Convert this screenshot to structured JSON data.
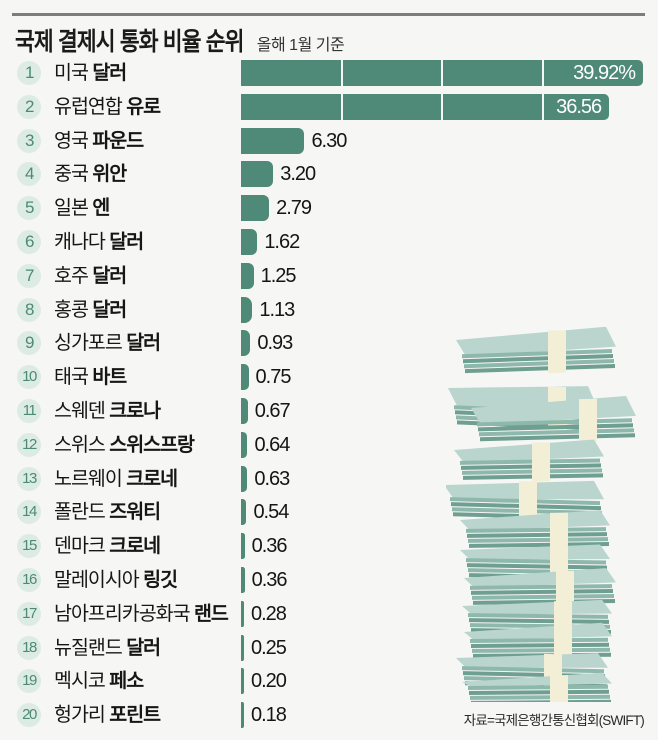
{
  "header": {
    "title": "국제 결제시 통화 비율 순위",
    "subtitle": "올해 1월 기준"
  },
  "source": "자료=국제은행간통신협회(SWIFT)",
  "colors": {
    "bar": "#4f8a79",
    "rank_circle": "#dcebe4",
    "rank_text": "#4d8a77",
    "background": "#f6f6f5",
    "band": "#f3efd6"
  },
  "illustration": "stack-of-money-icon",
  "rows": [
    {
      "rank": "1",
      "country": "미국",
      "currency": "달러",
      "value": "39.92%"
    },
    {
      "rank": "2",
      "country": "유럽연합",
      "currency": "유로",
      "value": "36.56"
    },
    {
      "rank": "3",
      "country": "영국",
      "currency": "파운드",
      "value": "6.30"
    },
    {
      "rank": "4",
      "country": "중국",
      "currency": "위안",
      "value": "3.20"
    },
    {
      "rank": "5",
      "country": "일본",
      "currency": "엔",
      "value": "2.79"
    },
    {
      "rank": "6",
      "country": "캐나다",
      "currency": "달러",
      "value": "1.62"
    },
    {
      "rank": "7",
      "country": "호주",
      "currency": "달러",
      "value": "1.25"
    },
    {
      "rank": "8",
      "country": "홍콩",
      "currency": "달러",
      "value": "1.13"
    },
    {
      "rank": "9",
      "country": "싱가포르",
      "currency": "달러",
      "value": "0.93"
    },
    {
      "rank": "10",
      "country": "태국",
      "currency": "바트",
      "value": "0.75"
    },
    {
      "rank": "11",
      "country": "스웨덴",
      "currency": "크로나",
      "value": "0.67"
    },
    {
      "rank": "12",
      "country": "스위스",
      "currency": "스위스프랑",
      "value": "0.64"
    },
    {
      "rank": "13",
      "country": "노르웨이",
      "currency": "크로네",
      "value": "0.63"
    },
    {
      "rank": "14",
      "country": "폴란드",
      "currency": "즈워티",
      "value": "0.54"
    },
    {
      "rank": "15",
      "country": "덴마크",
      "currency": "크로네",
      "value": "0.36"
    },
    {
      "rank": "16",
      "country": "말레이시아",
      "currency": "링깃",
      "value": "0.36"
    },
    {
      "rank": "17",
      "country": "남아프리카공화국",
      "currency": "랜드",
      "value": "0.28"
    },
    {
      "rank": "18",
      "country": "뉴질랜드",
      "currency": "달러",
      "value": "0.25"
    },
    {
      "rank": "19",
      "country": "멕시코",
      "currency": "페소",
      "value": "0.20"
    },
    {
      "rank": "20",
      "country": "헝가리",
      "currency": "포린트",
      "value": "0.18"
    }
  ],
  "chart_data": {
    "type": "bar",
    "orientation": "horizontal",
    "title": "국제 결제시 통화 비율 순위",
    "subtitle": "올해 1월 기준",
    "xlabel": "",
    "ylabel": "",
    "unit": "%",
    "categories": [
      "미국 달러",
      "유럽연합 유로",
      "영국 파운드",
      "중국 위안",
      "일본 엔",
      "캐나다 달러",
      "호주 달러",
      "홍콩 달러",
      "싱가포르 달러",
      "태국 바트",
      "스웨덴 크로나",
      "스위스 스위스프랑",
      "노르웨이 크로네",
      "폴란드 즈워티",
      "덴마크 크로네",
      "말레이시아 링깃",
      "남아프리카공화국 랜드",
      "뉴질랜드 달러",
      "멕시코 페소",
      "헝가리 포린트"
    ],
    "values": [
      39.92,
      36.56,
      6.3,
      3.2,
      2.79,
      1.62,
      1.25,
      1.13,
      0.93,
      0.75,
      0.67,
      0.64,
      0.63,
      0.54,
      0.36,
      0.36,
      0.28,
      0.25,
      0.2,
      0.18
    ],
    "gridlines_at": [
      10,
      20,
      30
    ],
    "legend": null,
    "source": "자료=국제은행간통신협회(SWIFT)"
  }
}
